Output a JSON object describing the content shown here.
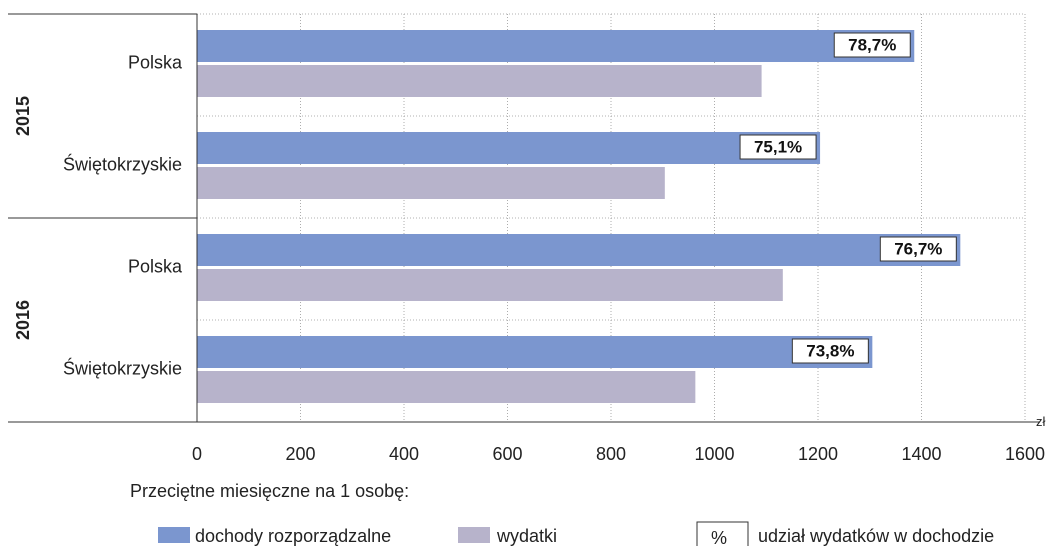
{
  "chart_data": {
    "type": "bar",
    "orientation": "horizontal",
    "groups": [
      {
        "year": "2015",
        "categories": [
          "Polska",
          "Świętokrzyskie"
        ]
      },
      {
        "year": "2016",
        "categories": [
          "Polska",
          "Świętokrzyskie"
        ]
      }
    ],
    "series": [
      {
        "name": "dochody rozporządzalne",
        "color": "#7b96cf",
        "values": [
          1386,
          1204,
          1475,
          1305
        ]
      },
      {
        "name": "wydatki",
        "color": "#b7b3cb",
        "values": [
          1091,
          904,
          1132,
          963
        ]
      }
    ],
    "share_labels": [
      "78,7%",
      "75,1%",
      "76,7%",
      "73,8%"
    ],
    "xlim": [
      0,
      1600
    ],
    "x_ticks": [
      0,
      200,
      400,
      600,
      800,
      1000,
      1200,
      1400,
      1600
    ],
    "x_tick_labels": [
      "0",
      "200",
      "400",
      "600",
      "800",
      "1000",
      "1200",
      "1400",
      "1600"
    ],
    "x_unit": "zł",
    "grid": "vertical dotted",
    "legend": {
      "title": "Przeciętne miesięczne na 1 osobę:",
      "items": [
        "dochody rozporządzalne",
        "wydatki"
      ],
      "box_symbol": "%",
      "box_text": "udział wydatków w dochodzie",
      "placement": "bottom"
    }
  }
}
